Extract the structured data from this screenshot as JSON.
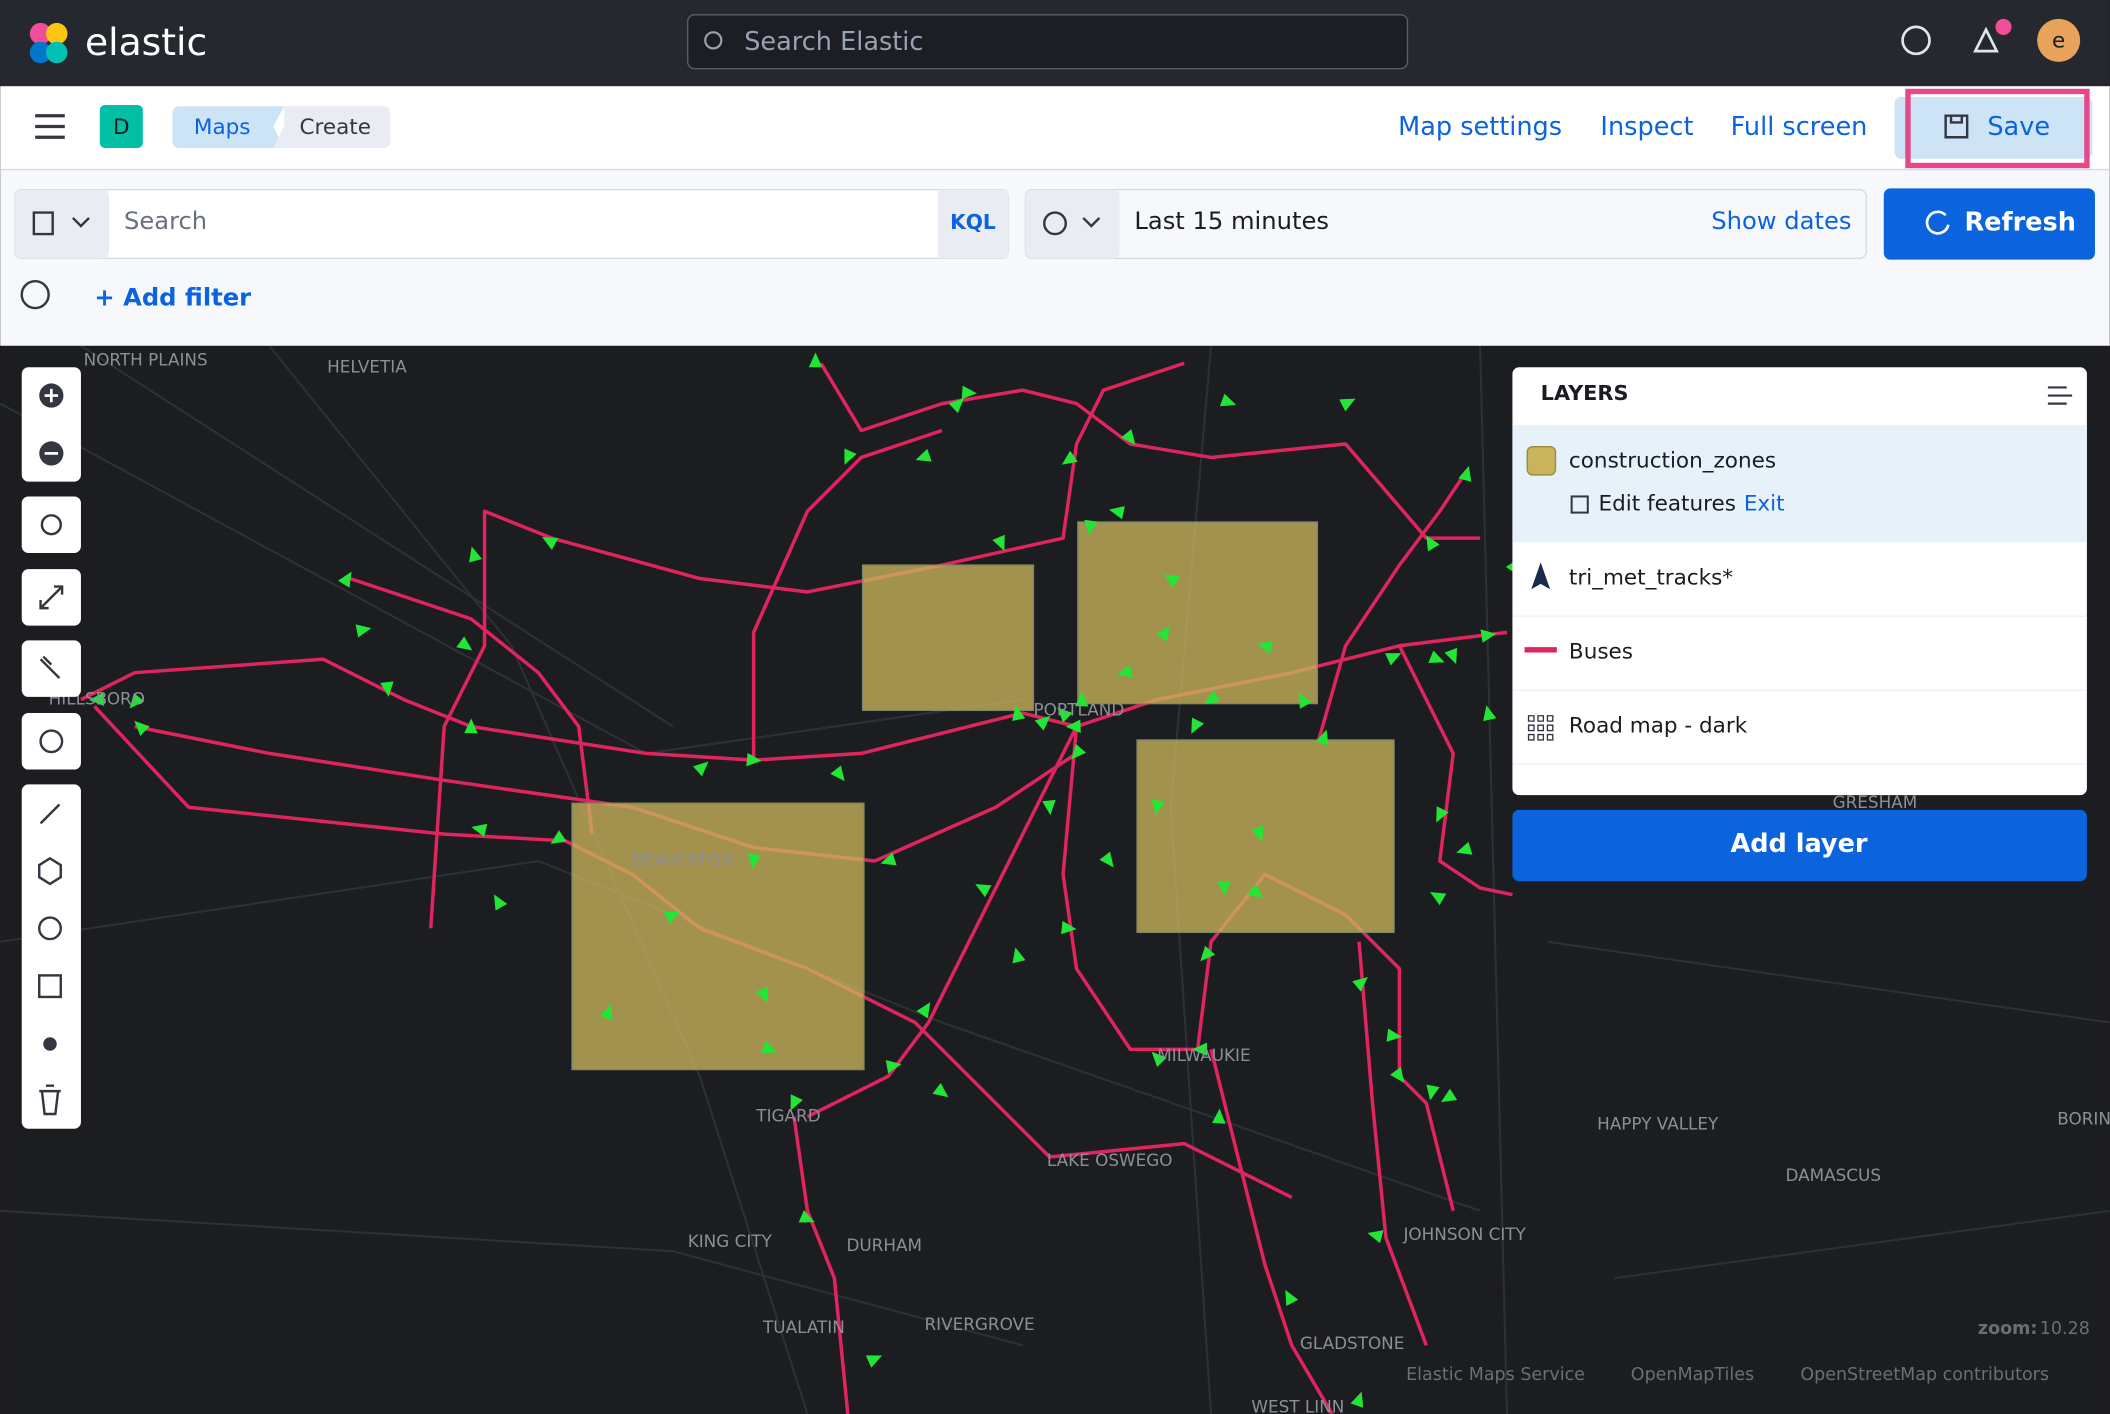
{
  "header": {
    "brand": "elastic",
    "search_placeholder": "Search Elastic",
    "avatar": "e"
  },
  "nav": {
    "space": "D",
    "breadcrumbs": [
      "Maps",
      "Create"
    ],
    "actions": [
      "Map settings",
      "Inspect",
      "Full screen"
    ],
    "save": "Save"
  },
  "query_bar": {
    "search_placeholder": "Search",
    "language": "KQL",
    "time_range": "Last 15 minutes",
    "show_dates": "Show dates",
    "refresh": "Refresh",
    "add_filter": "+ Add filter"
  },
  "layers_panel": {
    "title": "LAYERS",
    "layers": [
      {
        "name": "construction_zones",
        "edit": "Edit features",
        "exit": "Exit"
      },
      {
        "name": "tri_met_tracks*"
      },
      {
        "name": "Buses"
      },
      {
        "name": "Road map - dark"
      }
    ],
    "add_layer": "Add layer"
  },
  "map": {
    "labels": [
      "NORTH PLAINS",
      "HELVETIA",
      "HILLSBORO",
      "BEAVERTON",
      "PORTLAND",
      "MILWAUKIE",
      "TIGARD",
      "LAKE OSWEGO",
      "KING CITY",
      "DURHAM",
      "TUALATIN",
      "RIVERGROVE",
      "GLADSTONE",
      "JOHNSON CITY",
      "HAPPY VALLEY",
      "DAMASCUS",
      "BORING",
      "GRESHAM",
      "WEST LINN"
    ],
    "zoom_label": "zoom:",
    "zoom": 10.28,
    "attribution": [
      "Elastic Maps Service",
      "OpenMapTiles",
      "OpenStreetMap contributors"
    ]
  }
}
